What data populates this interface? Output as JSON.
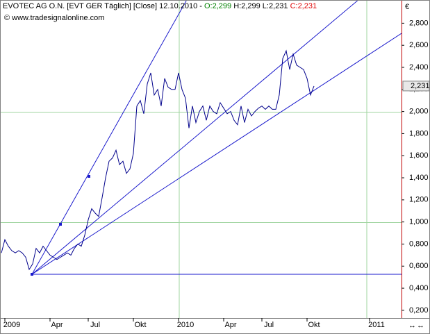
{
  "chart_data": {
    "type": "line",
    "title": "EVOTEC AG O.N. [EVT GER  Täglich] [Close] 12.10.2010 -",
    "ohlc": {
      "open": "O:2,299",
      "high": "H:2,299",
      "low": "L:2,231",
      "close": "C:2,231"
    },
    "watermark": "© www.tradesignalonline.com",
    "currency": "€",
    "current_price_label": "2,231",
    "categories": [
      null,
      null,
      null,
      "2009",
      null,
      null,
      null,
      null,
      null,
      null,
      null,
      null,
      null,
      null,
      null,
      null,
      "Apr",
      null,
      null,
      null,
      null,
      null,
      null,
      null,
      null,
      null,
      null,
      "Jul",
      null,
      null,
      null,
      null,
      null,
      null,
      null,
      null,
      null,
      null,
      null,
      null,
      "Okt",
      null,
      null,
      null,
      null,
      null,
      null,
      null,
      null,
      null,
      null,
      null,
      null,
      "2010",
      null,
      null,
      null,
      null,
      null,
      null,
      null,
      null,
      null,
      null,
      null,
      null,
      "Apr",
      null,
      null,
      null,
      null,
      null,
      null,
      null,
      null,
      null,
      null,
      "Jul",
      null,
      null,
      null,
      null,
      null,
      null,
      null,
      null,
      null,
      null,
      null,
      null,
      "Okt",
      null,
      null,
      null,
      null,
      null,
      null,
      null,
      null,
      null,
      null,
      null,
      null,
      null,
      null,
      null,
      null,
      null,
      "2011",
      null,
      null,
      null,
      null,
      null,
      null,
      null
    ],
    "series": [
      {
        "name": "EVOTEC AG O.N.",
        "color": "#00008b",
        "values": [
          0.72,
          0.84,
          0.78,
          0.74,
          0.72,
          0.74,
          0.72,
          0.68,
          0.57,
          0.62,
          0.76,
          0.72,
          0.78,
          0.74,
          0.7,
          0.68,
          0.66,
          0.68,
          0.7,
          0.72,
          0.7,
          0.76,
          0.8,
          0.78,
          0.88,
          1.02,
          1.12,
          1.08,
          1.05,
          1.22,
          1.4,
          1.55,
          1.58,
          1.65,
          1.52,
          1.55,
          1.44,
          1.48,
          1.62,
          2.05,
          2.1,
          1.98,
          2.25,
          2.35,
          2.15,
          2.2,
          2.05,
          2.3,
          2.22,
          2.2,
          2.2,
          2.35,
          2.2,
          2.12,
          1.85,
          2.05,
          1.9,
          2.0,
          2.05,
          1.92,
          2.05,
          2.0,
          1.98,
          2.08,
          2.03,
          1.98,
          2.0,
          1.92,
          1.88,
          2.05,
          1.9,
          2.02,
          1.96,
          2.0,
          2.03,
          2.05,
          2.02,
          2.05,
          2.02,
          2.02,
          2.15,
          2.48,
          2.55,
          2.38,
          2.52,
          2.42,
          2.4,
          2.38,
          2.3,
          2.15,
          2.231,
          null,
          null,
          null,
          null,
          null,
          null,
          null,
          null,
          null,
          null,
          null,
          null,
          null,
          null,
          null,
          null,
          null,
          null,
          null,
          null,
          null,
          null,
          null,
          null,
          null
        ]
      }
    ],
    "ylim": [
      0.13,
      3.01
    ],
    "yticks": [
      {
        "value": 0.2,
        "label": "0,200"
      },
      {
        "value": 0.4,
        "label": "0,400"
      },
      {
        "value": 0.6,
        "label": "0,600"
      },
      {
        "value": 0.8,
        "label": "0,800"
      },
      {
        "value": 1.0,
        "label": "1,000"
      },
      {
        "value": 1.2,
        "label": "1,200"
      },
      {
        "value": 1.4,
        "label": "1,400"
      },
      {
        "value": 1.6,
        "label": "1,600"
      },
      {
        "value": 1.8,
        "label": "1,800"
      },
      {
        "value": 2.0,
        "label": "2,000"
      },
      {
        "value": 2.2,
        "label": "2,200"
      },
      {
        "value": 2.4,
        "label": "2,400"
      },
      {
        "value": 2.6,
        "label": "2,600"
      },
      {
        "value": 2.8,
        "label": "2,800"
      }
    ],
    "grid": {
      "y": [
        1.0,
        2.0
      ]
    }
  }
}
